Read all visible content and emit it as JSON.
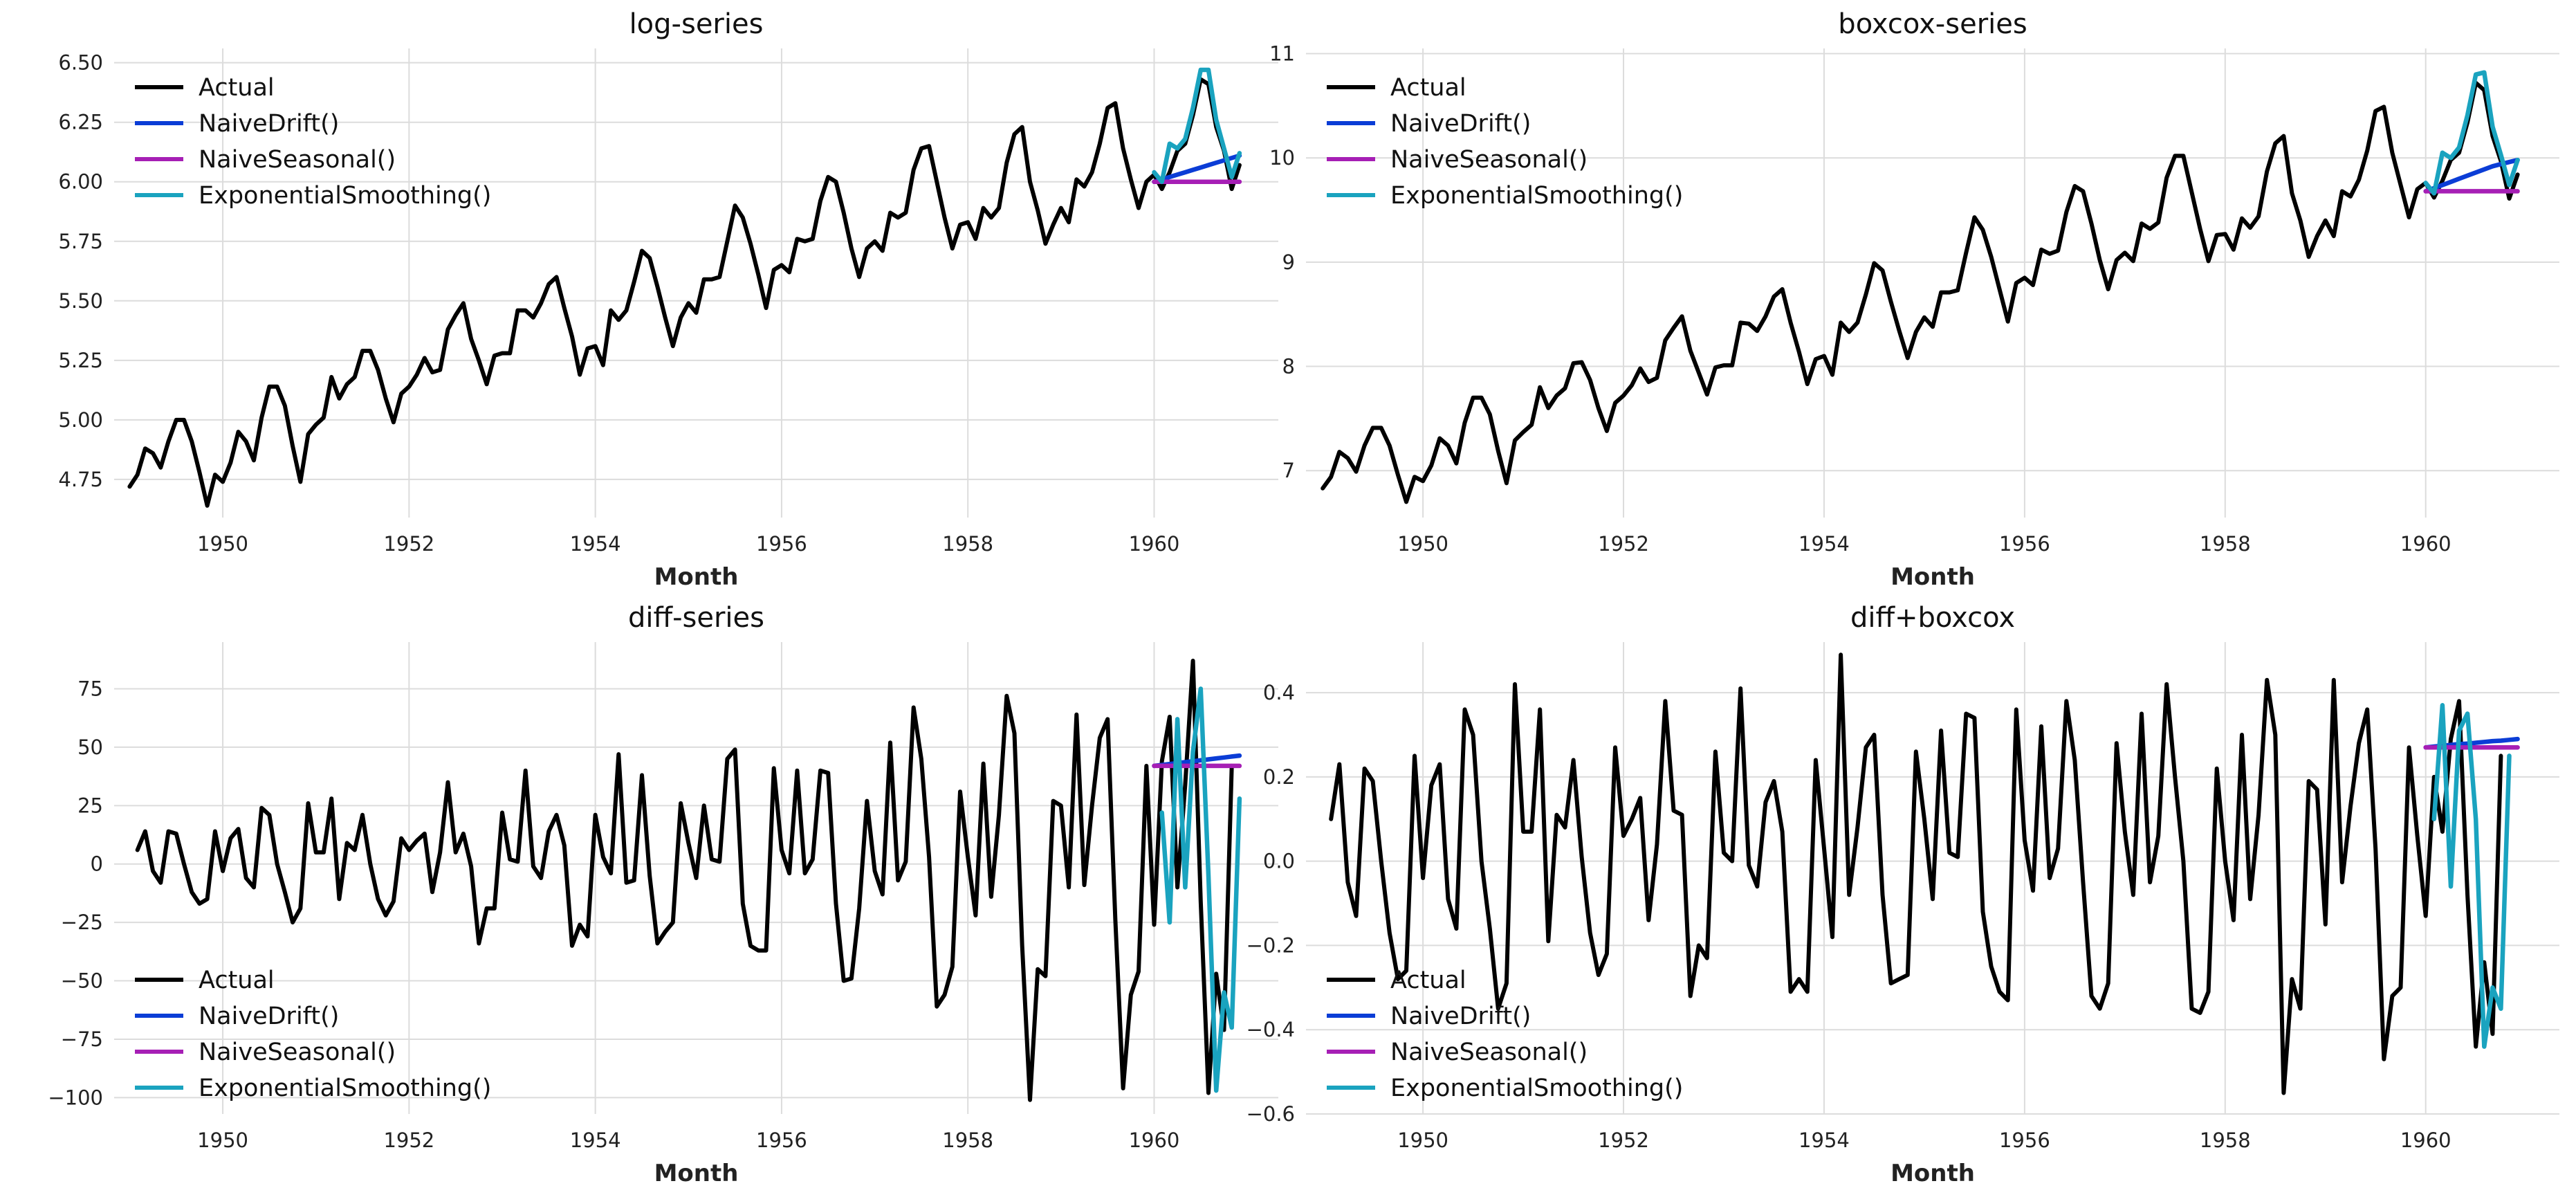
{
  "chart_data": [
    {
      "type": "line",
      "title": "log-series",
      "xlabel": "Month",
      "xticks": [
        "1950",
        "1952",
        "1954",
        "1956",
        "1958",
        "1960"
      ],
      "xlim": [
        "1948-11",
        "1961-05"
      ],
      "ylim": [
        4.59,
        6.56
      ],
      "yticks": [
        "4.75",
        "5.00",
        "5.25",
        "5.50",
        "5.75",
        "6.00",
        "6.25",
        "6.50"
      ],
      "grid": true,
      "legend_position": "upper-left",
      "series": [
        {
          "name": "Actual",
          "color": "#000000",
          "start": "1949-01",
          "values": [
            4.72,
            4.77,
            4.88,
            4.86,
            4.8,
            4.91,
            5.0,
            5.0,
            4.91,
            4.78,
            4.64,
            4.77,
            4.74,
            4.82,
            4.95,
            4.91,
            4.83,
            5.01,
            5.14,
            5.14,
            5.06,
            4.89,
            4.74,
            4.94,
            4.98,
            5.01,
            5.18,
            5.09,
            5.15,
            5.18,
            5.29,
            5.29,
            5.21,
            5.09,
            4.99,
            5.11,
            5.14,
            5.19,
            5.26,
            5.2,
            5.21,
            5.38,
            5.44,
            5.49,
            5.34,
            5.25,
            5.15,
            5.27,
            5.28,
            5.28,
            5.46,
            5.46,
            5.43,
            5.49,
            5.57,
            5.6,
            5.47,
            5.35,
            5.19,
            5.3,
            5.31,
            5.23,
            5.46,
            5.42,
            5.46,
            5.58,
            5.71,
            5.68,
            5.56,
            5.43,
            5.31,
            5.43,
            5.49,
            5.45,
            5.59,
            5.59,
            5.6,
            5.75,
            5.9,
            5.85,
            5.74,
            5.61,
            5.47,
            5.63,
            5.65,
            5.62,
            5.76,
            5.75,
            5.76,
            5.92,
            6.02,
            6.0,
            5.87,
            5.72,
            5.6,
            5.72,
            5.75,
            5.71,
            5.87,
            5.85,
            5.87,
            6.05,
            6.14,
            6.15,
            6.0,
            5.85,
            5.72,
            5.82,
            5.83,
            5.76,
            5.89,
            5.85,
            5.89,
            6.08,
            6.2,
            6.23,
            6.0,
            5.88,
            5.74,
            5.82,
            5.89,
            5.83,
            6.01,
            5.98,
            6.04,
            6.16,
            6.31,
            6.33,
            6.14,
            6.01,
            5.89,
            6.0,
            6.03,
            5.97,
            6.04,
            6.13,
            6.16,
            6.28,
            6.43,
            6.41,
            6.23,
            6.13,
            5.97,
            6.07
          ]
        },
        {
          "name": "NaiveDrift()",
          "color": "#0b3dd6",
          "start": "1960-01",
          "values": [
            6.0,
            6.01,
            6.02,
            6.03,
            6.04,
            6.05,
            6.06,
            6.07,
            6.08,
            6.09,
            6.1,
            6.11
          ]
        },
        {
          "name": "NaiveSeasonal()",
          "color": "#a61fb5",
          "start": "1960-01",
          "values": [
            6.0,
            6.0,
            6.0,
            6.0,
            6.0,
            6.0,
            6.0,
            6.0,
            6.0,
            6.0,
            6.0,
            6.0
          ]
        },
        {
          "name": "ExponentialSmoothing()",
          "color": "#1aa3bf",
          "start": "1960-01",
          "values": [
            6.04,
            6.0,
            6.16,
            6.14,
            6.18,
            6.31,
            6.47,
            6.47,
            6.26,
            6.14,
            6.02,
            6.12
          ]
        }
      ]
    },
    {
      "type": "line",
      "title": "boxcox-series",
      "xlabel": "Month",
      "xticks": [
        "1950",
        "1952",
        "1954",
        "1956",
        "1958",
        "1960"
      ],
      "xlim": [
        "1948-11",
        "1961-05"
      ],
      "ylim": [
        6.55,
        11.05
      ],
      "yticks": [
        "7",
        "8",
        "9",
        "10",
        "11"
      ],
      "grid": true,
      "legend_position": "upper-left",
      "series": [
        {
          "name": "Actual",
          "color": "#000000",
          "start": "1949-01",
          "values": [
            6.83,
            6.94,
            7.18,
            7.12,
            6.99,
            7.24,
            7.41,
            7.41,
            7.24,
            6.96,
            6.7,
            6.94,
            6.9,
            7.05,
            7.31,
            7.24,
            7.07,
            7.46,
            7.7,
            7.7,
            7.54,
            7.19,
            6.88,
            7.29,
            7.37,
            7.44,
            7.8,
            7.6,
            7.72,
            7.79,
            8.03,
            8.04,
            7.87,
            7.6,
            7.38,
            7.65,
            7.72,
            7.82,
            7.98,
            7.85,
            7.89,
            8.25,
            8.37,
            8.48,
            8.15,
            7.94,
            7.73,
            7.99,
            8.01,
            8.01,
            8.42,
            8.41,
            8.34,
            8.48,
            8.67,
            8.74,
            8.42,
            8.14,
            7.83,
            8.07,
            8.1,
            7.92,
            8.42,
            8.33,
            8.42,
            8.69,
            8.99,
            8.92,
            8.62,
            8.34,
            8.08,
            8.33,
            8.47,
            8.38,
            8.71,
            8.71,
            8.73,
            9.09,
            9.43,
            9.31,
            9.05,
            8.74,
            8.43,
            8.8,
            8.85,
            8.78,
            9.12,
            9.08,
            9.11,
            9.48,
            9.73,
            9.68,
            9.37,
            9.02,
            8.74,
            9.02,
            9.09,
            9.01,
            9.37,
            9.32,
            9.38,
            9.81,
            10.02,
            10.02,
            9.67,
            9.32,
            9.01,
            9.26,
            9.27,
            9.12,
            9.42,
            9.33,
            9.44,
            9.87,
            10.14,
            10.21,
            9.66,
            9.4,
            9.05,
            9.25,
            9.4,
            9.25,
            9.68,
            9.63,
            9.79,
            10.07,
            10.45,
            10.49,
            10.05,
            9.74,
            9.43,
            9.7,
            9.76,
            9.62,
            9.78,
            9.98,
            10.05,
            10.34,
            10.72,
            10.65,
            10.21,
            9.97,
            9.61,
            9.84
          ]
        },
        {
          "name": "NaiveDrift()",
          "color": "#0b3dd6",
          "start": "1960-01",
          "values": [
            9.68,
            9.71,
            9.74,
            9.77,
            9.8,
            9.83,
            9.86,
            9.89,
            9.92,
            9.94,
            9.96,
            9.98
          ]
        },
        {
          "name": "NaiveSeasonal()",
          "color": "#a61fb5",
          "start": "1960-01",
          "values": [
            9.68,
            9.68,
            9.68,
            9.68,
            9.68,
            9.68,
            9.68,
            9.68,
            9.68,
            9.68,
            9.68,
            9.68
          ]
        },
        {
          "name": "ExponentialSmoothing()",
          "color": "#1aa3bf",
          "start": "1960-01",
          "values": [
            9.76,
            9.66,
            10.05,
            10.0,
            10.1,
            10.41,
            10.8,
            10.82,
            10.3,
            10.03,
            9.74,
            9.98
          ]
        }
      ]
    },
    {
      "type": "line",
      "title": "diff-series",
      "xlabel": "Month",
      "xticks": [
        "1950",
        "1952",
        "1954",
        "1956",
        "1958",
        "1960"
      ],
      "xlim": [
        "1948-11",
        "1961-05"
      ],
      "ylim": [
        -107,
        95
      ],
      "yticks": [
        "−100",
        "−75",
        "−50",
        "−25",
        "0",
        "25",
        "50",
        "75"
      ],
      "grid": true,
      "legend_position": "lower-left",
      "series": [
        {
          "name": "Actual",
          "color": "#000000",
          "start": "1949-02",
          "values": [
            6,
            14,
            -3,
            -8,
            14,
            13,
            0,
            -12,
            -17,
            -15,
            14,
            -3,
            11,
            15,
            -6,
            -10,
            24,
            21,
            0,
            -12,
            -25,
            -19,
            26,
            5,
            5,
            28,
            -15,
            9,
            6,
            21,
            0,
            -15,
            -22,
            -16,
            11,
            6,
            10,
            13,
            -12,
            5,
            35,
            5,
            13,
            -1,
            -34,
            -19,
            -19,
            22,
            2,
            1,
            40,
            -1,
            -6,
            14,
            21,
            8,
            -35,
            -26,
            -31,
            21,
            3,
            -4,
            47,
            -8,
            -7,
            38,
            -5,
            -34,
            -29,
            -25,
            26,
            9,
            -6,
            25,
            2,
            1,
            45,
            49,
            -17,
            -35,
            -37,
            -37,
            41,
            6,
            -4,
            40,
            -4,
            2,
            40,
            39,
            -17,
            -50,
            -49,
            -19,
            27,
            -3,
            -13,
            52,
            -7,
            1,
            67,
            45,
            3,
            -61,
            -56,
            -44,
            31,
            3,
            -22,
            43,
            -14,
            21,
            72,
            56,
            -35,
            -101,
            -45,
            -48,
            27,
            25,
            -10,
            64,
            -9,
            25,
            54,
            62,
            -24,
            -96,
            -56,
            -46,
            42,
            -26,
            44,
            63,
            -10,
            34,
            87,
            -16,
            -98,
            -47,
            -71,
            42
          ]
        },
        {
          "name": "NaiveDrift()",
          "color": "#0b3dd6",
          "start": "1960-01",
          "values": [
            42,
            42.4,
            42.8,
            43.2,
            43.6,
            44,
            44.4,
            44.8,
            45.2,
            45.6,
            46,
            46.4
          ]
        },
        {
          "name": "NaiveSeasonal()",
          "color": "#a61fb5",
          "start": "1960-01",
          "values": [
            42,
            42,
            42,
            42,
            42,
            42,
            42,
            42,
            42,
            42,
            42,
            42
          ]
        },
        {
          "name": "ExponentialSmoothing()",
          "color": "#1aa3bf",
          "start": "1960-02",
          "values": [
            22,
            -25,
            62,
            -10,
            48,
            75,
            -5,
            -97,
            -55,
            -70,
            28
          ]
        }
      ]
    },
    {
      "type": "line",
      "title": "diff+boxcox",
      "xlabel": "Month",
      "xticks": [
        "1950",
        "1952",
        "1954",
        "1956",
        "1958",
        "1960"
      ],
      "xlim": [
        "1948-11",
        "1961-05"
      ],
      "ylim": [
        -0.6,
        0.52
      ],
      "yticks": [
        "−0.6",
        "−0.4",
        "−0.2",
        "0.0",
        "0.2",
        "0.4"
      ],
      "grid": true,
      "legend_position": "lower-left",
      "series": [
        {
          "name": "Actual",
          "color": "#000000",
          "start": "1949-02",
          "values": [
            0.1,
            0.23,
            -0.05,
            -0.13,
            0.22,
            0.19,
            0.0,
            -0.17,
            -0.28,
            -0.26,
            0.25,
            -0.04,
            0.18,
            0.23,
            -0.09,
            -0.16,
            0.36,
            0.3,
            0.0,
            -0.16,
            -0.35,
            -0.29,
            0.42,
            0.07,
            0.07,
            0.36,
            -0.19,
            0.11,
            0.08,
            0.24,
            0.01,
            -0.17,
            -0.27,
            -0.22,
            0.27,
            0.06,
            0.1,
            0.15,
            -0.14,
            0.04,
            0.38,
            0.12,
            0.11,
            -0.32,
            -0.2,
            -0.23,
            0.26,
            0.02,
            0.0,
            0.41,
            -0.01,
            -0.06,
            0.14,
            0.19,
            0.07,
            -0.31,
            -0.28,
            -0.31,
            0.24,
            0.03,
            -0.18,
            0.49,
            -0.08,
            0.08,
            0.27,
            0.3,
            -0.08,
            -0.29,
            -0.28,
            -0.27,
            0.26,
            0.1,
            -0.09,
            0.31,
            0.02,
            0.01,
            0.35,
            0.34,
            -0.12,
            -0.25,
            -0.31,
            -0.33,
            0.36,
            0.05,
            -0.07,
            0.32,
            -0.04,
            0.03,
            0.38,
            0.24,
            -0.05,
            -0.32,
            -0.35,
            -0.29,
            0.28,
            0.07,
            -0.08,
            0.35,
            -0.05,
            0.06,
            0.42,
            0.2,
            0.0,
            -0.35,
            -0.36,
            -0.31,
            0.22,
            0.0,
            -0.14,
            0.3,
            -0.09,
            0.11,
            0.43,
            0.3,
            -0.55,
            -0.28,
            -0.35,
            0.19,
            0.17,
            -0.15,
            0.43,
            -0.05,
            0.13,
            0.28,
            0.36,
            0.03,
            -0.47,
            -0.32,
            -0.3,
            0.27,
            0.06,
            -0.13,
            0.2,
            0.07,
            0.29,
            0.38,
            -0.08,
            -0.44,
            -0.24,
            -0.41,
            0.25
          ]
        },
        {
          "name": "NaiveDrift()",
          "color": "#0b3dd6",
          "start": "1960-01",
          "values": [
            0.27,
            0.272,
            0.274,
            0.276,
            0.278,
            0.279,
            0.281,
            0.283,
            0.285,
            0.286,
            0.288,
            0.29
          ]
        },
        {
          "name": "NaiveSeasonal()",
          "color": "#a61fb5",
          "start": "1960-01",
          "values": [
            0.27,
            0.27,
            0.27,
            0.27,
            0.27,
            0.27,
            0.27,
            0.27,
            0.27,
            0.27,
            0.27,
            0.27
          ]
        },
        {
          "name": "ExponentialSmoothing()",
          "color": "#1aa3bf",
          "start": "1960-02",
          "values": [
            0.1,
            0.37,
            -0.06,
            0.31,
            0.35,
            0.1,
            -0.44,
            -0.3,
            -0.35,
            0.25
          ]
        }
      ]
    }
  ]
}
